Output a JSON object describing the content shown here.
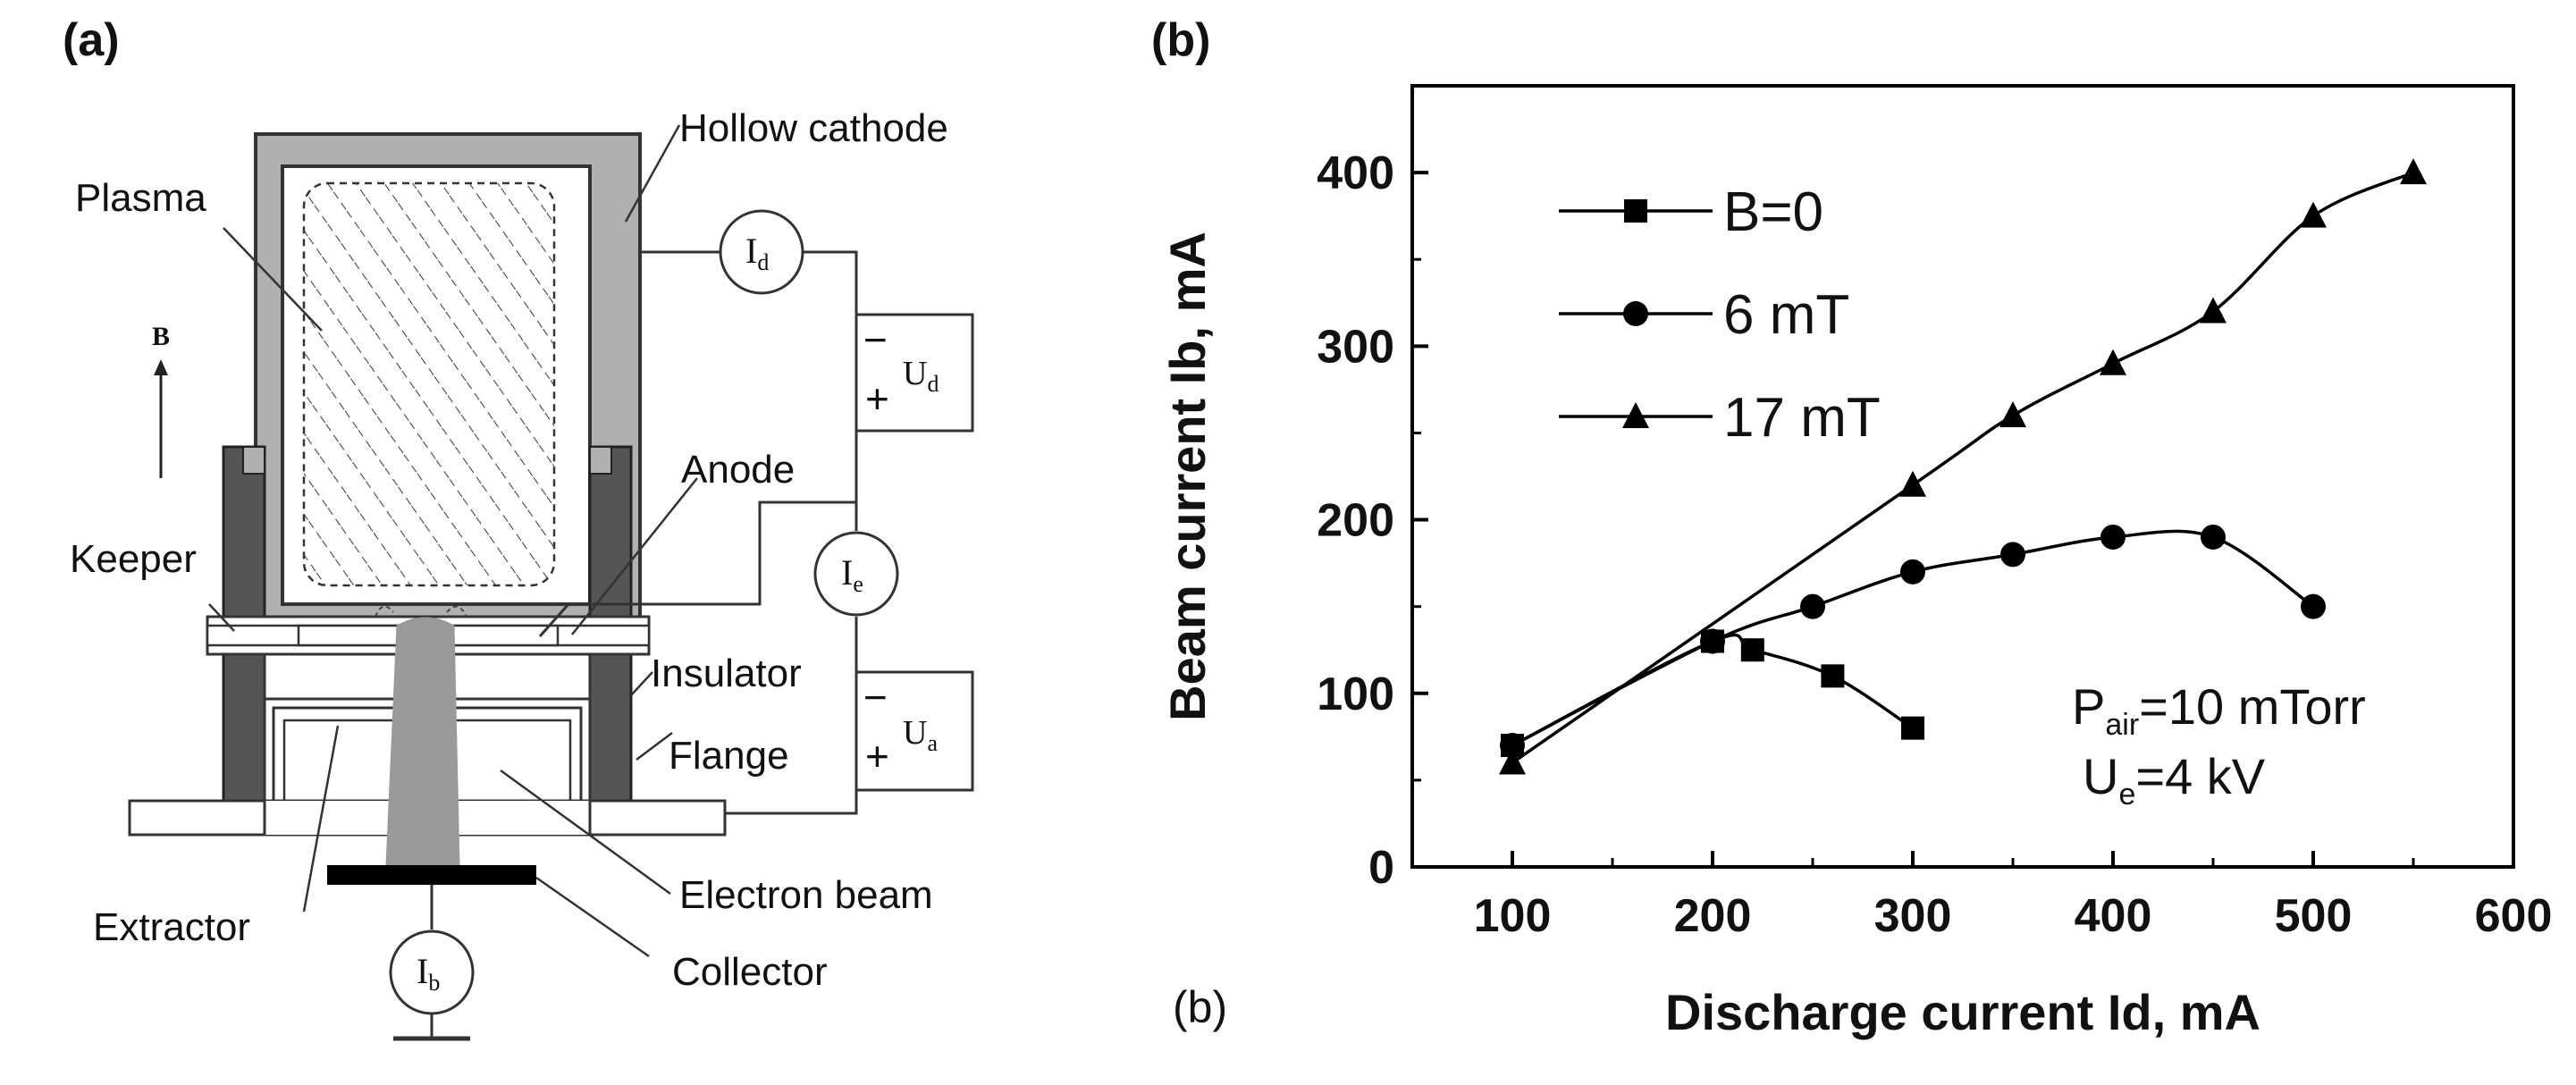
{
  "panel_a": {
    "label": "(a)",
    "labels": {
      "hollow_cathode": "Hollow cathode",
      "plasma": "Plasma",
      "b_field": "B",
      "anode": "Anode",
      "keeper": "Keeper",
      "insulator": "Insulator",
      "flange": "Flange",
      "extractor": "Extractor",
      "electron_beam": "Electron beam",
      "collector": "Collector"
    },
    "meters": {
      "id": "I",
      "id_sub": "d",
      "ie": "I",
      "ie_sub": "e",
      "ib": "I",
      "ib_sub": "b"
    },
    "supplies": {
      "ud": "U",
      "ud_sub": "d",
      "ua": "U",
      "ua_sub": "a",
      "minus": "−",
      "plus": "+"
    }
  },
  "panel_b": {
    "label": "(b)",
    "bottom_label": "(b)",
    "annotation_line1": "P",
    "annotation_line1_sub": "air",
    "annotation_line1_rest": "=10 mTorr",
    "annotation_line2": "U",
    "annotation_line2_sub": "e",
    "annotation_line2_rest": "=4 kV"
  },
  "chart_data": {
    "type": "line",
    "xlabel": "Discharge current Id, mA",
    "ylabel": "Beam current Ib, mA",
    "xlim": [
      50,
      600
    ],
    "ylim": [
      0,
      450
    ],
    "xticks": [
      100,
      200,
      300,
      400,
      500,
      600
    ],
    "yticks": [
      0,
      100,
      200,
      300,
      400
    ],
    "grid": false,
    "legend": "top-left",
    "series": [
      {
        "name": "B=0",
        "marker": "square",
        "x": [
          100,
          200,
          220,
          260,
          300
        ],
        "y": [
          70,
          130,
          125,
          110,
          80
        ]
      },
      {
        "name": "6 mT",
        "marker": "circle",
        "x": [
          100,
          200,
          250,
          300,
          350,
          400,
          450,
          500
        ],
        "y": [
          70,
          130,
          150,
          170,
          180,
          190,
          190,
          150
        ]
      },
      {
        "name": "17 mT",
        "marker": "triangle",
        "x": [
          100,
          300,
          350,
          400,
          450,
          500,
          550
        ],
        "y": [
          60,
          220,
          260,
          290,
          320,
          375,
          400
        ]
      }
    ]
  }
}
